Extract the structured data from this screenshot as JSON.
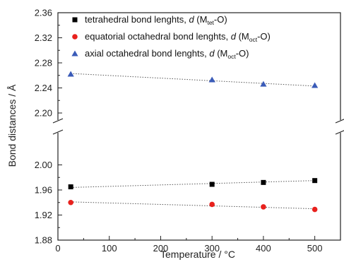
{
  "chart_data": {
    "type": "scatter",
    "xlabel": "Temperature / °C",
    "ylabel": "Bond distances / Å",
    "xlim": [
      0,
      550
    ],
    "ylim_upper": [
      2.2,
      2.36
    ],
    "ylim_lower": [
      1.88,
      2.04
    ],
    "axis_break": true,
    "x_ticks": [
      "0",
      "100",
      "200",
      "300",
      "400",
      "500"
    ],
    "y_ticks_upper": [
      "2.20",
      "2.24",
      "2.28",
      "2.32",
      "2.36"
    ],
    "y_ticks_lower": [
      "1.88",
      "1.92",
      "1.96",
      "2.00"
    ],
    "legend_position": "top-left",
    "series": [
      {
        "id": "tet",
        "legend_main": "tetrahedral bond lenghts, ",
        "legend_d": "d",
        "legend_open": " (M",
        "legend_sub": "tet",
        "legend_close": "-O)",
        "marker": "square",
        "color": "#000000",
        "x": [
          25,
          300,
          400,
          500
        ],
        "y": [
          1.965,
          1.969,
          1.972,
          1.975
        ],
        "fit": [
          1.964,
          1.975
        ]
      },
      {
        "id": "eq",
        "legend_main": "equatorial octahedral bond lenghts, ",
        "legend_d": "d",
        "legend_open": " (M",
        "legend_sub": "oct",
        "legend_close": "-O)",
        "marker": "circle",
        "color": "#e8211d",
        "x": [
          25,
          300,
          400,
          500
        ],
        "y": [
          1.94,
          1.937,
          1.933,
          1.929
        ],
        "fit": [
          1.941,
          1.93
        ]
      },
      {
        "id": "ax",
        "legend_main": "axial octahedral bond lenghts, ",
        "legend_d": "d",
        "legend_open": " (M",
        "legend_sub": "oct",
        "legend_close": "-O)",
        "marker": "triangle",
        "color": "#3a5bb8",
        "x": [
          25,
          300,
          400,
          500
        ],
        "y": [
          2.262,
          2.253,
          2.246,
          2.244
        ],
        "fit": [
          2.263,
          2.243
        ]
      }
    ]
  }
}
